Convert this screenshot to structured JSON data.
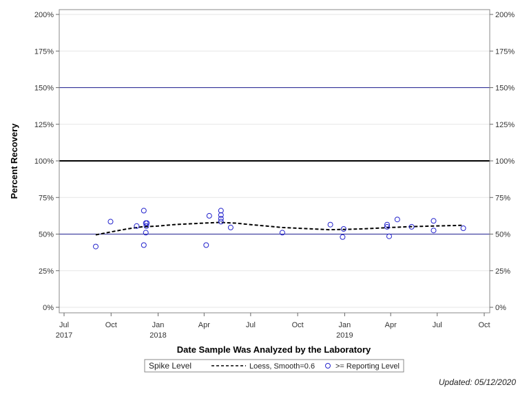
{
  "chart_data": {
    "type": "scatter",
    "xlabel": "Date Sample Was Analyzed by the Laboratory",
    "ylabel": "Percent Recovery",
    "ylim": [
      0,
      200
    ],
    "xlim": [
      "2017-07-01",
      "2019-10-01"
    ],
    "y_ticks": [
      0,
      25,
      50,
      75,
      100,
      125,
      150,
      175,
      200
    ],
    "y_tick_labels": [
      "0%",
      "25%",
      "50%",
      "75%",
      "100%",
      "125%",
      "150%",
      "175%",
      "200%"
    ],
    "x_ticks": [
      {
        "date": "2017-07-01",
        "label": "Jul",
        "year": "2017"
      },
      {
        "date": "2017-10-01",
        "label": "Oct",
        "year": ""
      },
      {
        "date": "2018-01-01",
        "label": "Jan",
        "year": "2018"
      },
      {
        "date": "2018-04-01",
        "label": "Apr",
        "year": ""
      },
      {
        "date": "2018-07-01",
        "label": "Jul",
        "year": ""
      },
      {
        "date": "2018-10-01",
        "label": "Oct",
        "year": ""
      },
      {
        "date": "2019-01-01",
        "label": "Jan",
        "year": "2019"
      },
      {
        "date": "2019-04-01",
        "label": "Apr",
        "year": ""
      },
      {
        "date": "2019-07-01",
        "label": "Jul",
        "year": ""
      },
      {
        "date": "2019-10-01",
        "label": "Oct",
        "year": ""
      }
    ],
    "reference_lines": [
      {
        "y": 150,
        "color": "#1f1f8f",
        "width": 1
      },
      {
        "y": 100,
        "color": "#000000",
        "width": 2
      },
      {
        "y": 50,
        "color": "#1f1f8f",
        "width": 1
      }
    ],
    "series": [
      {
        "name": ">= Reporting Level",
        "type": "scatter",
        "color": "#2222cc",
        "points": [
          {
            "x": "2017-09-01",
            "y": 41.5
          },
          {
            "x": "2017-09-30",
            "y": 58.5
          },
          {
            "x": "2017-11-20",
            "y": 55.5
          },
          {
            "x": "2017-12-04",
            "y": 66
          },
          {
            "x": "2017-12-04",
            "y": 42.5
          },
          {
            "x": "2017-12-08",
            "y": 57.5
          },
          {
            "x": "2017-12-10",
            "y": 57.5
          },
          {
            "x": "2017-12-09",
            "y": 55.5
          },
          {
            "x": "2017-12-08",
            "y": 51
          },
          {
            "x": "2018-04-05",
            "y": 42.5
          },
          {
            "x": "2018-04-11",
            "y": 62.5
          },
          {
            "x": "2018-05-04",
            "y": 66
          },
          {
            "x": "2018-05-04",
            "y": 63
          },
          {
            "x": "2018-05-04",
            "y": 60.5
          },
          {
            "x": "2018-05-04",
            "y": 58.5
          },
          {
            "x": "2018-05-23",
            "y": 54.5
          },
          {
            "x": "2018-09-01",
            "y": 51
          },
          {
            "x": "2018-12-04",
            "y": 56.5
          },
          {
            "x": "2018-12-28",
            "y": 48
          },
          {
            "x": "2018-12-30",
            "y": 53.5
          },
          {
            "x": "2019-03-25",
            "y": 56.5
          },
          {
            "x": "2019-03-25",
            "y": 55
          },
          {
            "x": "2019-03-29",
            "y": 48.5
          },
          {
            "x": "2019-04-14",
            "y": 60
          },
          {
            "x": "2019-05-12",
            "y": 55
          },
          {
            "x": "2019-06-24",
            "y": 59
          },
          {
            "x": "2019-06-24",
            "y": 52.5
          },
          {
            "x": "2019-08-21",
            "y": 54
          }
        ]
      },
      {
        "name": "Loess, Smooth=0.6",
        "type": "line",
        "dashed": true,
        "color": "#000000",
        "points": [
          {
            "x": "2017-09-01",
            "y": 49.5
          },
          {
            "x": "2017-10-01",
            "y": 51.5
          },
          {
            "x": "2017-11-01",
            "y": 53.5
          },
          {
            "x": "2017-12-01",
            "y": 55
          },
          {
            "x": "2018-01-01",
            "y": 55.5
          },
          {
            "x": "2018-02-01",
            "y": 56.5
          },
          {
            "x": "2018-03-01",
            "y": 57
          },
          {
            "x": "2018-04-01",
            "y": 57.5
          },
          {
            "x": "2018-05-01",
            "y": 58
          },
          {
            "x": "2018-06-01",
            "y": 57.5
          },
          {
            "x": "2018-07-01",
            "y": 56.5
          },
          {
            "x": "2018-08-01",
            "y": 55.5
          },
          {
            "x": "2018-09-01",
            "y": 54.5
          },
          {
            "x": "2018-10-01",
            "y": 54
          },
          {
            "x": "2018-11-01",
            "y": 53.5
          },
          {
            "x": "2018-12-01",
            "y": 53
          },
          {
            "x": "2019-01-01",
            "y": 53.2
          },
          {
            "x": "2019-02-01",
            "y": 53.5
          },
          {
            "x": "2019-03-01",
            "y": 54
          },
          {
            "x": "2019-04-01",
            "y": 54.5
          },
          {
            "x": "2019-05-01",
            "y": 55
          },
          {
            "x": "2019-06-01",
            "y": 55.3
          },
          {
            "x": "2019-07-01",
            "y": 55.6
          },
          {
            "x": "2019-08-21",
            "y": 56
          }
        ]
      }
    ],
    "legend": {
      "placement": "bottom",
      "title": "Spike Level",
      "items": [
        {
          "label": "Loess, Smooth=0.6",
          "kind": "dashed-line"
        },
        {
          "label": ">= Reporting Level",
          "kind": "circle"
        }
      ]
    },
    "footnote": "Updated: 05/12/2020"
  }
}
